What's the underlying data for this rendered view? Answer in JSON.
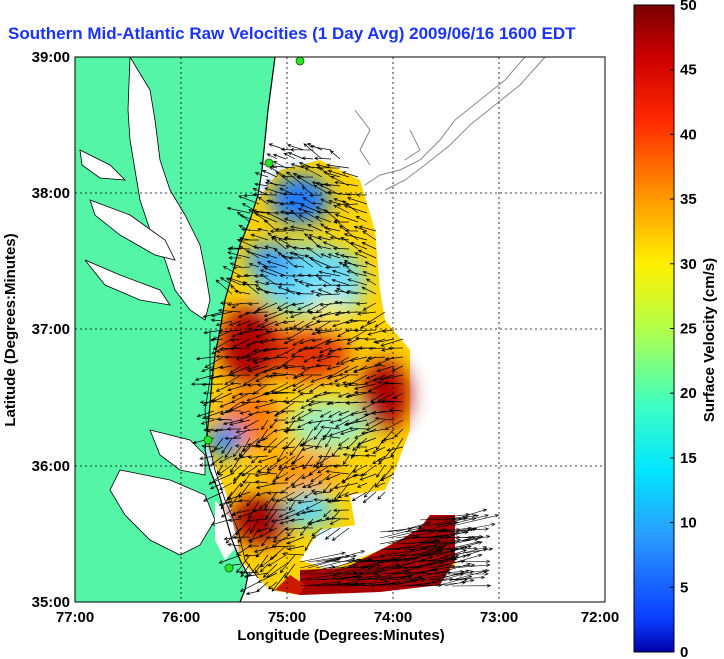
{
  "title": "Southern Mid-Atlantic Raw Velocities (1 Day Avg) 2009/06/16 1600 EDT",
  "map": {
    "xlabel": "Longitude (Degrees:Minutes)",
    "ylabel": "Latitude (Degrees:Minutes)",
    "x_ticks": [
      "77:00",
      "76:00",
      "75:00",
      "74:00",
      "73:00",
      "72:00"
    ],
    "y_ticks": [
      "39:00",
      "38:00",
      "37:00",
      "36:00",
      "35:00"
    ],
    "lon_range_deg_west": [
      77,
      72
    ],
    "lat_range_deg_north": [
      35,
      39
    ],
    "grid": "dotted",
    "land_color": "#55f5a8",
    "ocean_color": "#ffffff",
    "arrow_color": "#000000"
  },
  "colorbar": {
    "label": "Surface Velocity (cm/s)",
    "ticks": [
      "50",
      "45",
      "40",
      "35",
      "30",
      "25",
      "20",
      "15",
      "10",
      "5",
      "0"
    ],
    "range": [
      0,
      50
    ],
    "colormap": "jet",
    "position": "right"
  },
  "icons": {
    "station": "radar-station-icon"
  }
}
